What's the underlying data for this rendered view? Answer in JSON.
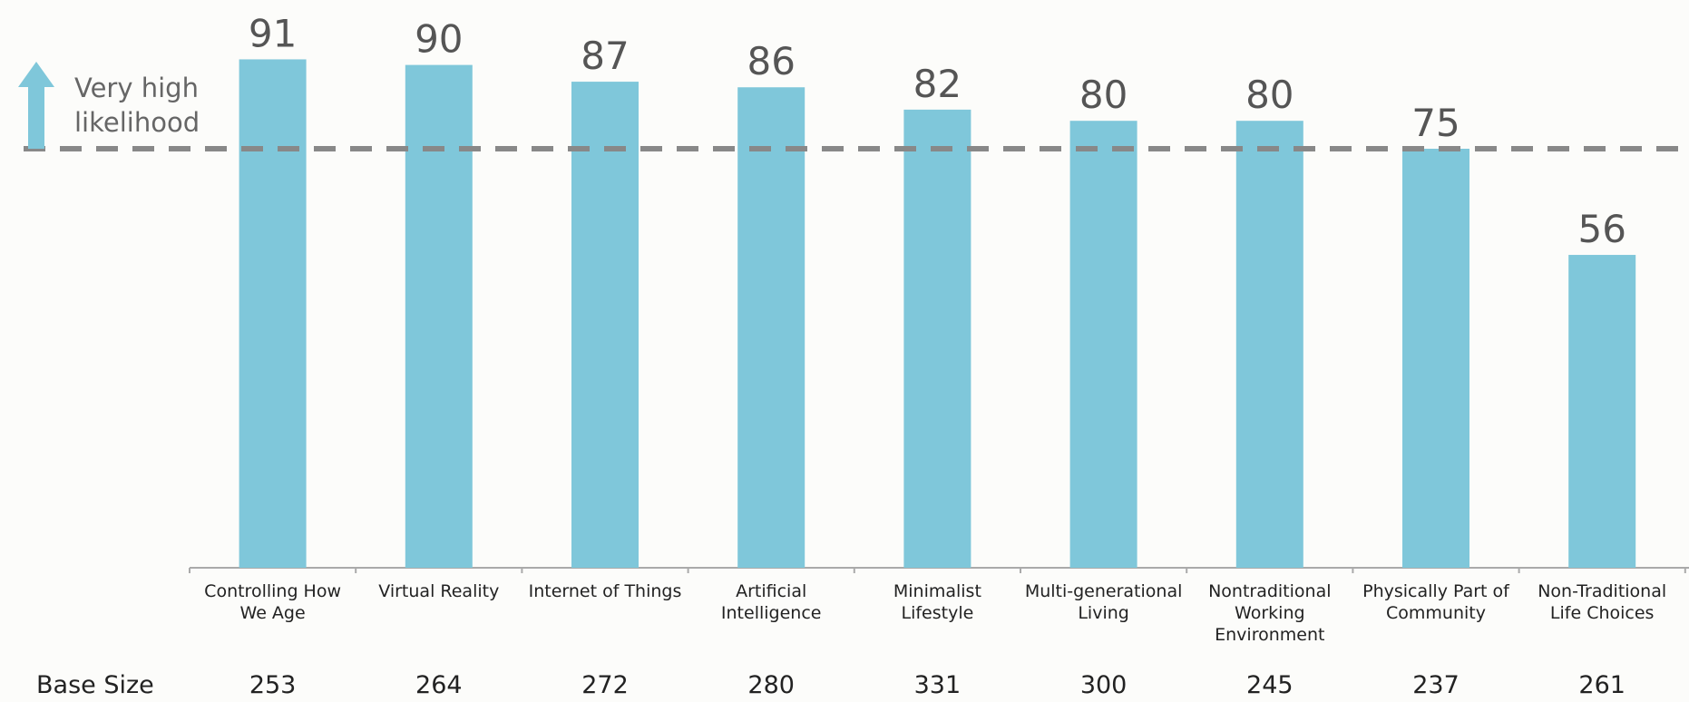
{
  "chart_data": {
    "type": "bar",
    "categories": [
      "Controlling How We Age",
      "Virtual Reality",
      "Internet of Things",
      "Artificial Intelligence",
      "Minimalist Lifestyle",
      "Multi-generational Living",
      "Nontraditional Working Environment",
      "Physically Part of Community",
      "Non-Traditional Life Choices"
    ],
    "values": [
      91,
      90,
      87,
      86,
      82,
      80,
      80,
      75,
      56
    ],
    "color": "#7fc7da",
    "ylim": [
      0,
      100
    ],
    "threshold": {
      "value": 75,
      "text": "Very high likelihood",
      "color": "#888888"
    },
    "base_size": {
      "label": "Base Size",
      "values": [
        253,
        264,
        272,
        280,
        331,
        300,
        245,
        237,
        261
      ]
    }
  }
}
